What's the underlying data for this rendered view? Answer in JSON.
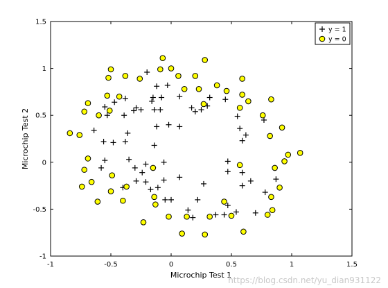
{
  "chart_data": {
    "type": "scatter",
    "title": "",
    "xlabel": "Microchip Test 1",
    "ylabel": "Microchip Test 2",
    "xlim": [
      -1,
      1.5
    ],
    "ylim": [
      -1,
      1.5
    ],
    "x_ticks": [
      -1,
      -0.5,
      0,
      0.5,
      1,
      1.5
    ],
    "x_tick_labels": [
      "-1",
      "-0.5",
      "0",
      "0.5",
      "1",
      "1.5"
    ],
    "y_ticks": [
      -1,
      -0.5,
      0,
      0.5,
      1,
      1.5
    ],
    "y_tick_labels": [
      "-1",
      "-0.5",
      "0",
      "0.5",
      "1",
      "1.5"
    ],
    "grid": false,
    "legend_position": "top-right",
    "series": [
      {
        "name": "y = 1",
        "marker": "plus",
        "color": "#000000",
        "points": [
          [
            -0.2,
            0.96
          ],
          [
            -0.12,
            0.81
          ],
          [
            -0.08,
            0.69
          ],
          [
            -0.15,
            0.69
          ],
          [
            -0.03,
            0.82
          ],
          [
            0.07,
            0.7
          ],
          [
            -0.29,
            0.58
          ],
          [
            -0.38,
            0.68
          ],
          [
            -0.55,
            0.59
          ],
          [
            -0.47,
            0.64
          ],
          [
            -0.64,
            0.34
          ],
          [
            -0.53,
            0.5
          ],
          [
            -0.39,
            0.5
          ],
          [
            -0.25,
            0.56
          ],
          [
            -0.31,
            0.55
          ],
          [
            -0.16,
            0.65
          ],
          [
            -0.14,
            0.56
          ],
          [
            -0.09,
            0.56
          ],
          [
            -0.02,
            0.4
          ],
          [
            -0.12,
            0.38
          ],
          [
            -0.36,
            0.31
          ],
          [
            -0.48,
            0.21
          ],
          [
            -0.56,
            0.22
          ],
          [
            -0.38,
            0.22
          ],
          [
            -0.14,
            0.18
          ],
          [
            -0.35,
            0.03
          ],
          [
            -0.55,
            0.02
          ],
          [
            -0.58,
            -0.06
          ],
          [
            -0.3,
            -0.06
          ],
          [
            -0.21,
            -0.02
          ],
          [
            -0.06,
            0.0
          ],
          [
            -0.24,
            -0.11
          ],
          [
            -0.29,
            -0.2
          ],
          [
            -0.4,
            -0.27
          ],
          [
            -0.37,
            -0.26
          ],
          [
            -0.21,
            -0.21
          ],
          [
            -0.06,
            -0.19
          ],
          [
            -0.11,
            -0.27
          ],
          [
            -0.17,
            -0.29
          ],
          [
            -0.05,
            -0.4
          ],
          [
            0.0,
            -0.4
          ],
          [
            0.07,
            -0.16
          ],
          [
            0.14,
            -0.51
          ],
          [
            0.18,
            -0.59
          ],
          [
            0.22,
            -0.4
          ],
          [
            0.27,
            -0.23
          ],
          [
            0.37,
            -0.56
          ],
          [
            0.44,
            -0.56
          ],
          [
            0.47,
            -0.46
          ],
          [
            0.54,
            -0.53
          ],
          [
            0.7,
            -0.54
          ],
          [
            0.78,
            -0.32
          ],
          [
            0.87,
            -0.18
          ],
          [
            0.66,
            -0.2
          ],
          [
            0.59,
            -0.11
          ],
          [
            0.59,
            -0.25
          ],
          [
            0.47,
            -0.1
          ],
          [
            0.47,
            0.01
          ],
          [
            0.59,
            0.23
          ],
          [
            0.62,
            0.29
          ],
          [
            0.57,
            0.36
          ],
          [
            0.55,
            0.49
          ],
          [
            0.77,
            0.45
          ],
          [
            0.45,
            0.67
          ],
          [
            0.32,
            0.69
          ],
          [
            0.3,
            0.6
          ],
          [
            0.25,
            0.56
          ],
          [
            0.17,
            0.58
          ],
          [
            0.2,
            0.54
          ],
          [
            0.07,
            0.38
          ]
        ]
      },
      {
        "name": "y = 0",
        "marker": "circle",
        "color": "#ffff00",
        "edge_color": "#000000",
        "points": [
          [
            0.28,
            1.09
          ],
          [
            -0.07,
            1.11
          ],
          [
            0.0,
            1.0
          ],
          [
            -0.09,
            0.99
          ],
          [
            0.06,
            0.92
          ],
          [
            0.2,
            0.92
          ],
          [
            -0.26,
            0.89
          ],
          [
            -0.5,
            0.99
          ],
          [
            -0.52,
            0.9
          ],
          [
            -0.43,
            0.7
          ],
          [
            -0.53,
            0.71
          ],
          [
            -0.69,
            0.63
          ],
          [
            -0.72,
            0.54
          ],
          [
            -0.51,
            0.55
          ],
          [
            -0.38,
            0.92
          ],
          [
            0.11,
            0.78
          ],
          [
            0.23,
            0.78
          ],
          [
            0.38,
            0.82
          ],
          [
            0.46,
            0.76
          ],
          [
            0.59,
            0.72
          ],
          [
            0.64,
            0.65
          ],
          [
            0.57,
            0.58
          ],
          [
            0.59,
            0.89
          ],
          [
            0.76,
            0.5
          ],
          [
            0.83,
            0.67
          ],
          [
            0.92,
            0.37
          ],
          [
            0.82,
            0.28
          ],
          [
            0.97,
            0.08
          ],
          [
            0.94,
            0.01
          ],
          [
            1.07,
            0.1
          ],
          [
            0.86,
            -0.06
          ],
          [
            0.9,
            -0.27
          ],
          [
            0.83,
            -0.37
          ],
          [
            0.84,
            -0.51
          ],
          [
            0.8,
            -0.56
          ],
          [
            0.6,
            -0.74
          ],
          [
            0.5,
            -0.57
          ],
          [
            0.44,
            -0.42
          ],
          [
            0.32,
            -0.58
          ],
          [
            0.28,
            -0.77
          ],
          [
            0.09,
            -0.76
          ],
          [
            0.13,
            -0.58
          ],
          [
            -0.02,
            -0.58
          ],
          [
            -0.13,
            -0.45
          ],
          [
            -0.14,
            -0.37
          ],
          [
            -0.23,
            -0.64
          ],
          [
            -0.4,
            -0.41
          ],
          [
            -0.5,
            -0.31
          ],
          [
            -0.49,
            -0.14
          ],
          [
            -0.37,
            -0.26
          ],
          [
            -0.61,
            -0.42
          ],
          [
            -0.66,
            -0.21
          ],
          [
            -0.74,
            -0.26
          ],
          [
            -0.72,
            -0.08
          ],
          [
            -0.69,
            0.04
          ],
          [
            -0.76,
            0.29
          ],
          [
            -0.84,
            0.31
          ],
          [
            -0.6,
            0.5
          ],
          [
            -0.15,
            -0.06
          ],
          [
            0.27,
            0.62
          ],
          [
            0.57,
            -0.03
          ]
        ]
      }
    ]
  },
  "watermark": "https://blog.csdn.net/yu_dian931122"
}
